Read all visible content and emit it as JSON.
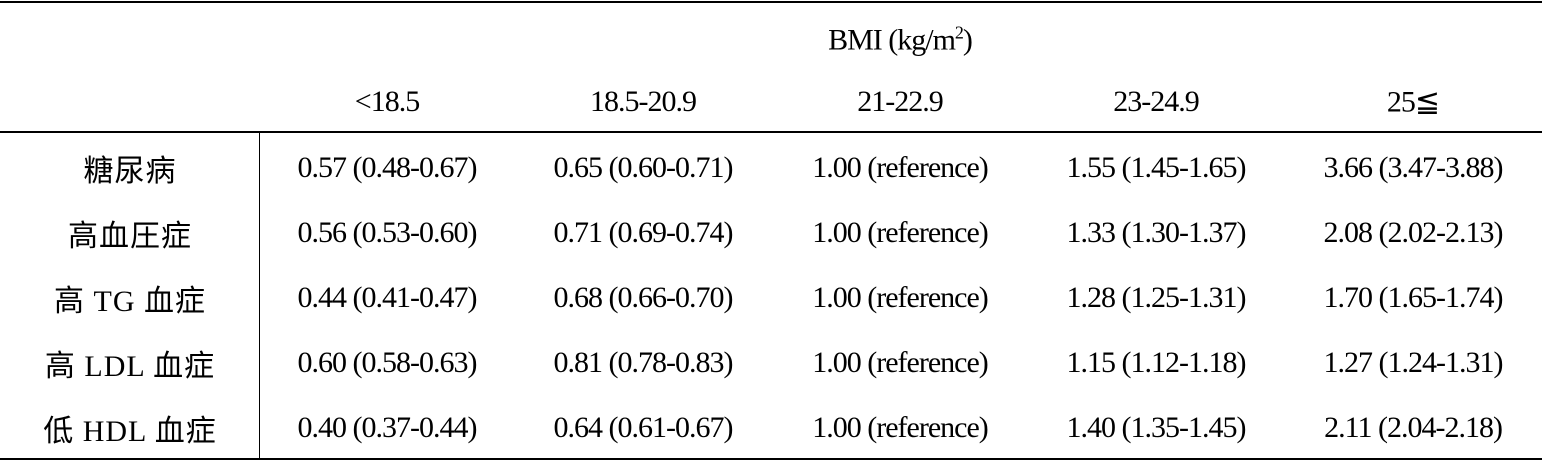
{
  "table": {
    "header": {
      "title": {
        "main": "BMI (kg/m",
        "sup": "2",
        "close": ")"
      },
      "columns": [
        "<18.5",
        "18.5-20.9",
        "21-22.9",
        "23-24.9",
        "25≦"
      ]
    },
    "rows": [
      [
        "糖尿病",
        "0.57 (0.48-0.67)",
        "0.65 (0.60-0.71)",
        "1.00 (reference)",
        "1.55 (1.45-1.65)",
        "3.66 (3.47-3.88)"
      ],
      [
        "高血圧症",
        "0.56 (0.53-0.60)",
        "0.71 (0.69-0.74)",
        "1.00 (reference)",
        "1.33 (1.30-1.37)",
        "2.08 (2.02-2.13)"
      ],
      [
        "高 TG 血症",
        "0.44 (0.41-0.47)",
        "0.68 (0.66-0.70)",
        "1.00 (reference)",
        "1.28 (1.25-1.31)",
        "1.70 (1.65-1.74)"
      ],
      [
        "高 LDL 血症",
        "0.60 (0.58-0.63)",
        "0.81 (0.78-0.83)",
        "1.00 (reference)",
        "1.15 (1.12-1.18)",
        "1.27 (1.24-1.31)"
      ],
      [
        "低 HDL 血症",
        "0.40 (0.37-0.44)",
        "0.64 (0.61-0.67)",
        "1.00 (reference)",
        "1.40 (1.35-1.45)",
        "2.11 (2.04-2.18)"
      ]
    ]
  }
}
